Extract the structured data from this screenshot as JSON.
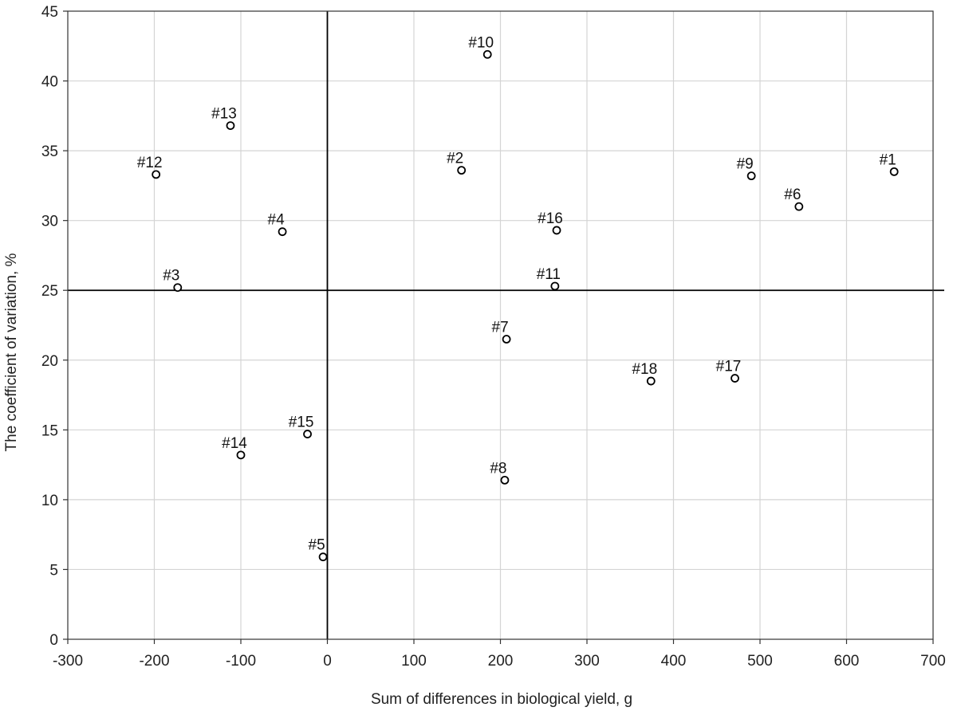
{
  "chart_data": {
    "type": "scatter",
    "title": "",
    "xlabel": "Sum of differences in biological yield, g",
    "ylabel": "The coefficient of variation, %",
    "xlim": [
      -300,
      700
    ],
    "ylim": [
      0,
      45
    ],
    "xticks": [
      -300,
      -200,
      -100,
      0,
      100,
      200,
      300,
      400,
      500,
      600,
      700
    ],
    "yticks": [
      0,
      5,
      10,
      15,
      20,
      25,
      30,
      35,
      40,
      45
    ],
    "grid": true,
    "reference_lines": {
      "x": 0,
      "y": 25
    },
    "points": [
      {
        "label": "#1",
        "x": 655,
        "y": 33.5
      },
      {
        "label": "#2",
        "x": 155,
        "y": 33.6
      },
      {
        "label": "#3",
        "x": -173,
        "y": 25.2
      },
      {
        "label": "#4",
        "x": -52,
        "y": 29.2
      },
      {
        "label": "#5",
        "x": -5,
        "y": 5.9
      },
      {
        "label": "#6",
        "x": 545,
        "y": 31.0
      },
      {
        "label": "#7",
        "x": 207,
        "y": 21.5
      },
      {
        "label": "#8",
        "x": 205,
        "y": 11.4
      },
      {
        "label": "#9",
        "x": 490,
        "y": 33.2
      },
      {
        "label": "#10",
        "x": 185,
        "y": 41.9
      },
      {
        "label": "#11",
        "x": 263,
        "y": 25.3
      },
      {
        "label": "#12",
        "x": -198,
        "y": 33.3
      },
      {
        "label": "#13",
        "x": -112,
        "y": 36.8
      },
      {
        "label": "#14",
        "x": -100,
        "y": 13.2
      },
      {
        "label": "#15",
        "x": -23,
        "y": 14.7
      },
      {
        "label": "#16",
        "x": 265,
        "y": 29.3
      },
      {
        "label": "#17",
        "x": 471,
        "y": 18.7
      },
      {
        "label": "#18",
        "x": 374,
        "y": 18.5
      }
    ]
  }
}
